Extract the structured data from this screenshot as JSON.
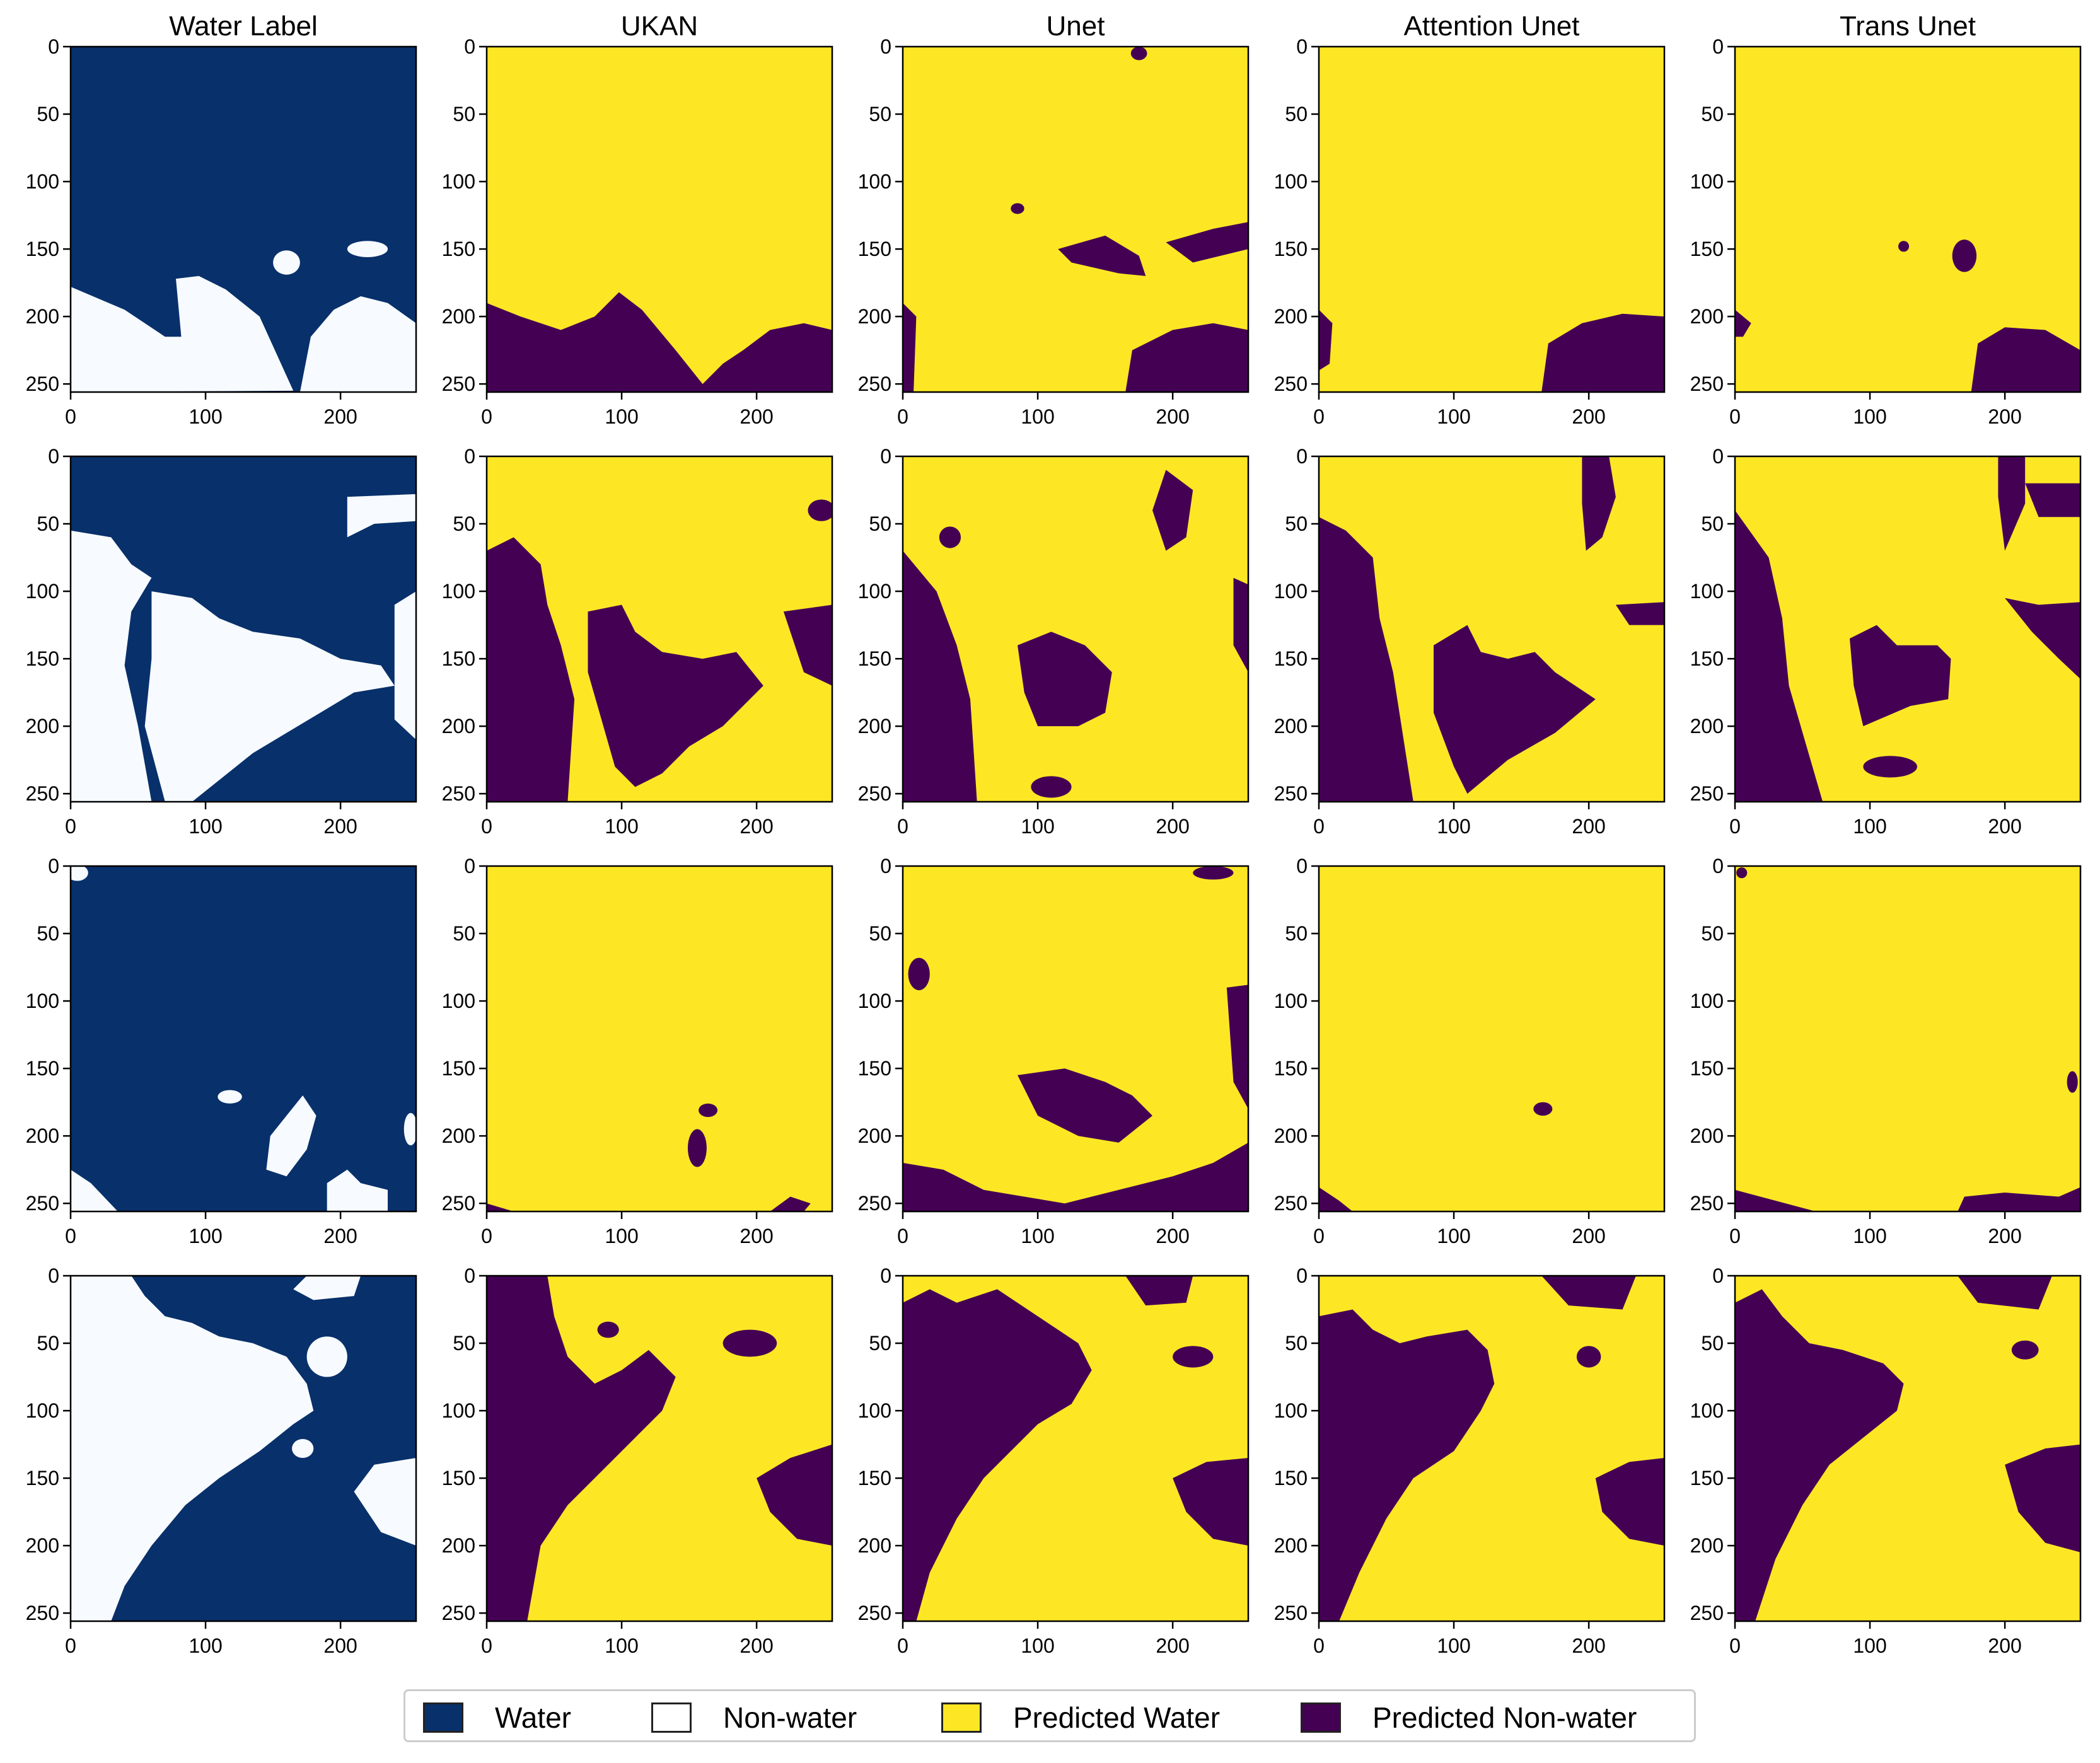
{
  "chart_data": {
    "type": "heatmap",
    "layout": {
      "rows": 4,
      "cols": 5
    },
    "column_titles": [
      "Water Label",
      "UKAN",
      "Unet",
      "Attention Unet",
      "Trans Unet"
    ],
    "x_ticks": [
      "0",
      "100",
      "200"
    ],
    "y_ticks": [
      "0",
      "50",
      "100",
      "150",
      "200",
      "250"
    ],
    "xlim": [
      0,
      256
    ],
    "ylim": [
      256,
      0
    ],
    "colors": {
      "water": "#08306b",
      "non_water": "#f7fbff",
      "predicted_water": "#fde725",
      "predicted_non_water": "#440154"
    },
    "legend": [
      {
        "label": "Water",
        "color": "#08306b"
      },
      {
        "label": "Non-water",
        "color": "#ffffff"
      },
      {
        "label": "Predicted Water",
        "color": "#fde725"
      },
      {
        "label": "Predicted Non-water",
        "color": "#440154"
      }
    ]
  }
}
